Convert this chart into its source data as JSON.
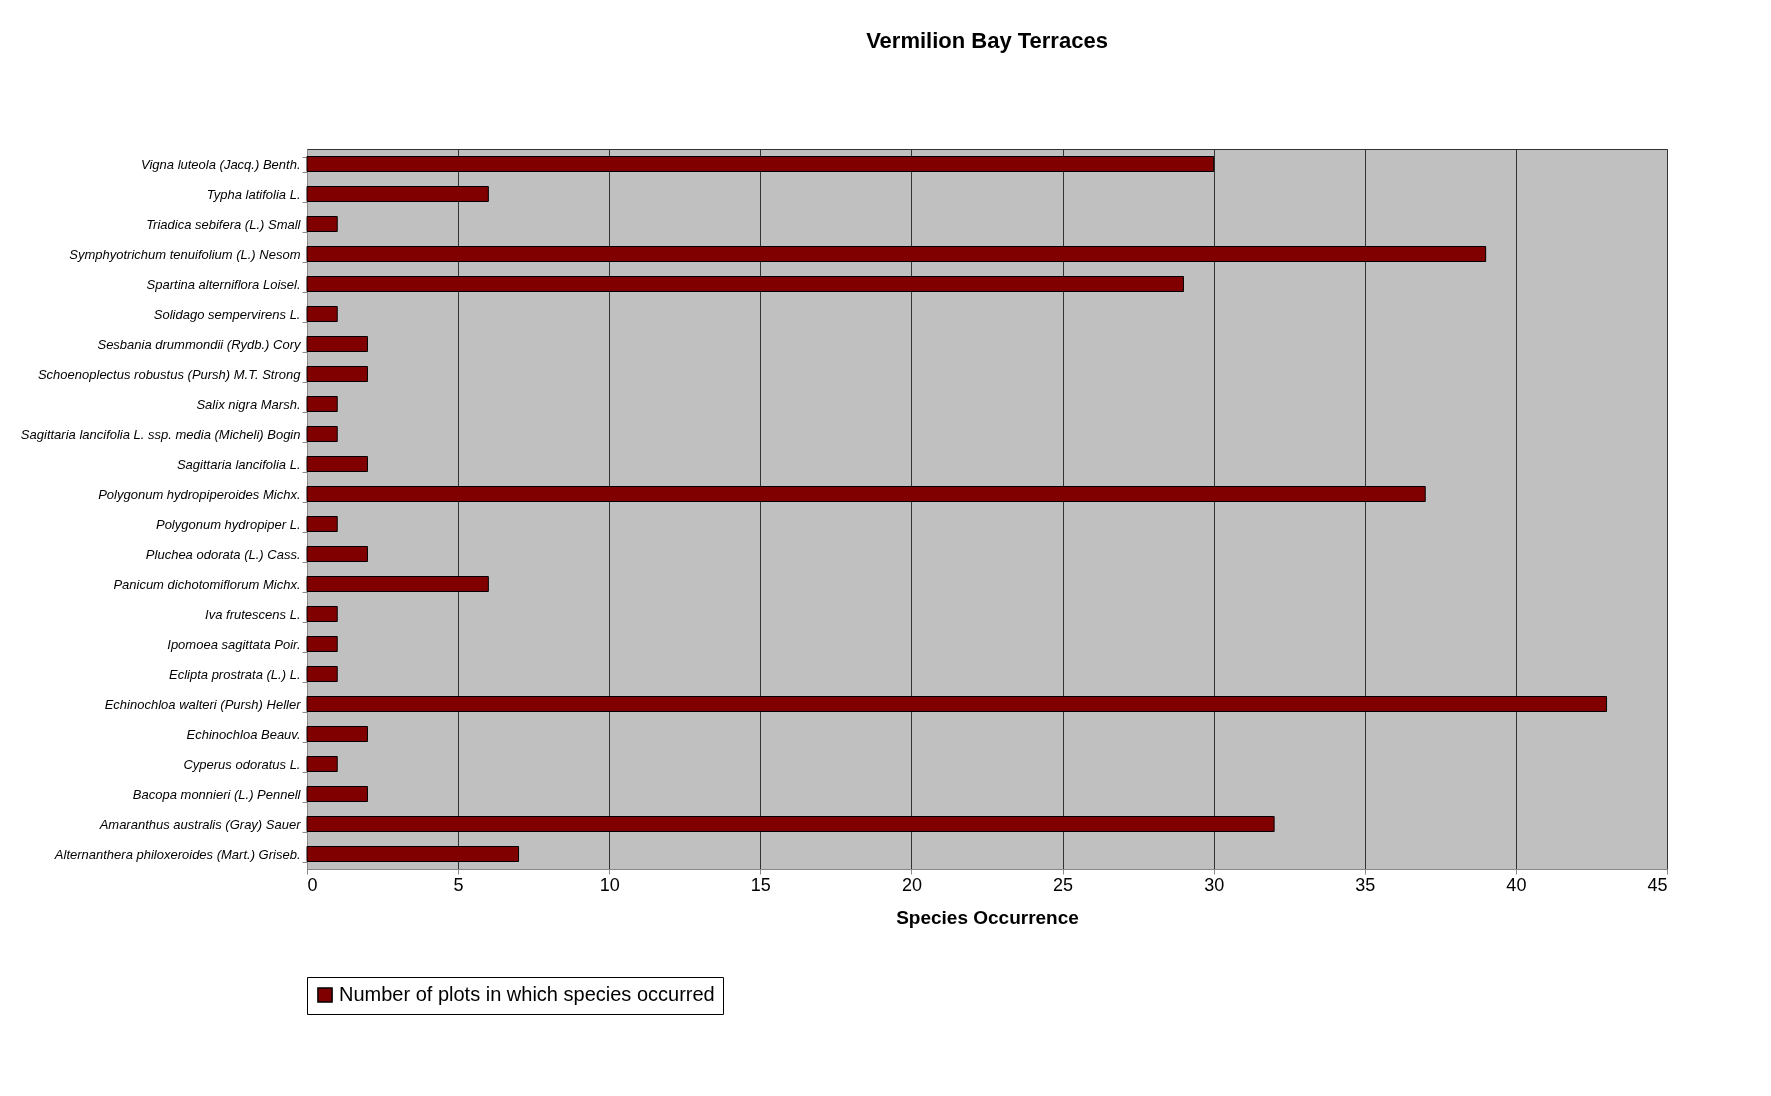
{
  "chart_data": {
    "type": "bar",
    "orientation": "horizontal",
    "title": "Vermilion Bay Terraces",
    "xlabel": "Species Occurrence",
    "categories": [
      "Vigna luteola (Jacq.) Benth.",
      "Typha latifolia L.",
      "Triadica sebifera (L.) Small",
      "Symphyotrichum tenuifolium (L.) Nesom",
      "Spartina alterniflora Loisel.",
      "Solidago sempervirens L.",
      "Sesbania drummondii (Rydb.) Cory",
      "Schoenoplectus robustus (Pursh) M.T. Strong",
      "Salix nigra Marsh.",
      "Sagittaria lancifolia L. ssp. media (Micheli) Bogin",
      "Sagittaria lancifolia L.",
      "Polygonum hydropiperoides Michx.",
      "Polygonum hydropiper L.",
      "Pluchea odorata (L.) Cass.",
      "Panicum dichotomiflorum Michx.",
      "Iva frutescens L.",
      "Ipomoea sagittata Poir.",
      "Eclipta prostrata (L.) L.",
      "Echinochloa walteri (Pursh) Heller",
      "Echinochloa Beauv.",
      "Cyperus odoratus L.",
      "Bacopa monnieri (L.) Pennell",
      "Amaranthus australis (Gray) Sauer",
      "Alternanthera philoxeroides (Mart.) Griseb."
    ],
    "series": [
      {
        "name": "Number of plots in which species occurred",
        "color": "#800000",
        "values": [
          30,
          6,
          1,
          39,
          29,
          1,
          2,
          2,
          1,
          1,
          2,
          37,
          1,
          2,
          6,
          1,
          1,
          1,
          43,
          2,
          1,
          2,
          32,
          7
        ]
      }
    ],
    "xlim": [
      0,
      45
    ],
    "xticks": [
      0,
      5,
      10,
      15,
      20,
      25,
      30,
      35,
      40,
      45
    ],
    "grid": "x",
    "legend": "bottom"
  }
}
